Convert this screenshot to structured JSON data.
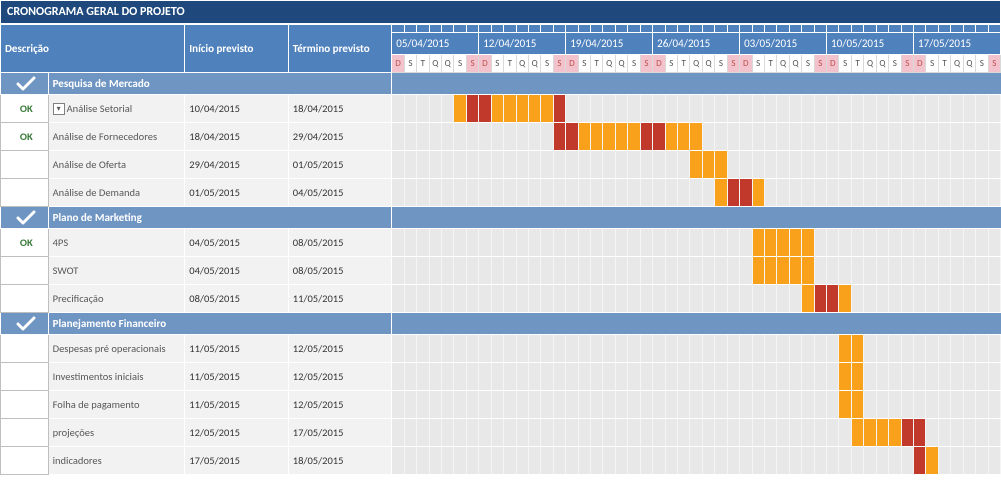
{
  "title": "CRONOGRAMA GERAL DO PROJETO",
  "columns": {
    "desc": "Descrição",
    "start": "Início previsto",
    "end": "Término previsto"
  },
  "colors": {
    "header_bg": "#4f81bd",
    "title_bg": "#1f497d",
    "section_bg": "#6f95c3",
    "row_bg": "#f2f2f2",
    "gantt_bg": "#e8e8e8",
    "bar_weekday": "#f9a11b",
    "bar_weekend": "#c0392b",
    "weekend_hdr_bg": "#f2c3cd",
    "weekend_hdr_fg": "#c0504d",
    "ok_fg": "#3b7a3b"
  },
  "layout": {
    "col_status_w": 46,
    "col_desc_w": 132,
    "col_start_w": 100,
    "col_end_w": 100,
    "day_w": 12,
    "row_h_task": 28,
    "row_h_section": 22,
    "font_size": 11
  },
  "calendar": {
    "start": "2015-04-05",
    "weeks": [
      "05/04/2015",
      "12/04/2015",
      "19/04/2015",
      "26/04/2015",
      "03/05/2015",
      "10/05/2015",
      "17/05/2015"
    ],
    "day_letters": [
      "D",
      "S",
      "T",
      "Q",
      "Q",
      "S",
      "S"
    ],
    "weekend_idx": [
      0,
      6
    ],
    "num_days": 49
  },
  "sections": [
    {
      "name": "Pesquisa de Mercado",
      "tasks": [
        {
          "status": "OK",
          "dropdown": true,
          "desc": "Análise Setorial",
          "start": "10/04/2015",
          "end": "18/04/2015",
          "bar_start": 5,
          "bar_end": 13
        },
        {
          "status": "OK",
          "desc": "Análise de Fornecedores",
          "start": "18/04/2015",
          "end": "29/04/2015",
          "bar_start": 13,
          "bar_end": 24
        },
        {
          "status": "",
          "desc": "Análise de Oferta",
          "start": "29/04/2015",
          "end": "01/05/2015",
          "bar_start": 24,
          "bar_end": 26
        },
        {
          "status": "",
          "desc": "Análise de Demanda",
          "start": "01/05/2015",
          "end": "04/05/2015",
          "bar_start": 26,
          "bar_end": 29
        }
      ]
    },
    {
      "name": "Plano de Marketing",
      "tasks": [
        {
          "status": "OK",
          "desc": "4PS",
          "start": "04/05/2015",
          "end": "08/05/2015",
          "bar_start": 29,
          "bar_end": 33
        },
        {
          "status": "",
          "desc": "SWOT",
          "start": "04/05/2015",
          "end": "08/05/2015",
          "bar_start": 29,
          "bar_end": 33
        },
        {
          "status": "",
          "desc": "Precificação",
          "start": "08/05/2015",
          "end": "11/05/2015",
          "bar_start": 33,
          "bar_end": 36
        }
      ]
    },
    {
      "name": "Planejamento Financeiro",
      "tasks": [
        {
          "status": "",
          "desc": "Despesas pré operacionais",
          "start": "11/05/2015",
          "end": "12/05/2015",
          "bar_start": 36,
          "bar_end": 37
        },
        {
          "status": "",
          "desc": "Investimentos iniciais",
          "start": "11/05/2015",
          "end": "12/05/2015",
          "bar_start": 36,
          "bar_end": 37
        },
        {
          "status": "",
          "desc": "Folha de pagamento",
          "start": "11/05/2015",
          "end": "12/05/2015",
          "bar_start": 36,
          "bar_end": 37
        },
        {
          "status": "",
          "desc": "projeções",
          "start": "12/05/2015",
          "end": "17/05/2015",
          "bar_start": 37,
          "bar_end": 42
        },
        {
          "status": "",
          "desc": "indicadores",
          "start": "17/05/2015",
          "end": "18/05/2015",
          "bar_start": 42,
          "bar_end": 43
        }
      ]
    }
  ]
}
